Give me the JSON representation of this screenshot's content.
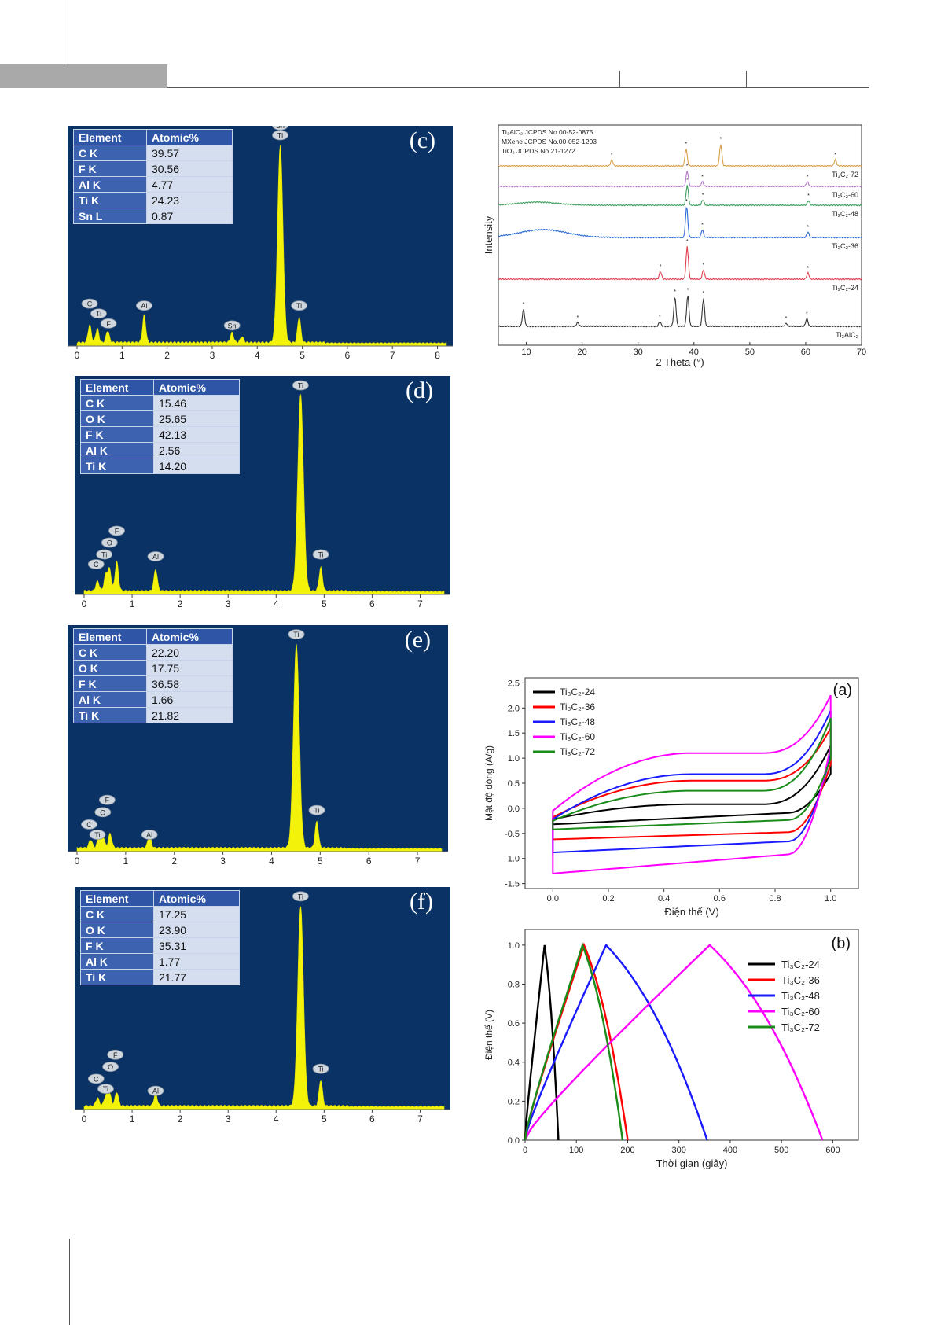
{
  "chart_data": [
    {
      "id": "eds-c",
      "type": "bar",
      "title": "(c)",
      "table_headers": [
        "Element",
        "Atomic%"
      ],
      "rows": [
        {
          "element": "C K",
          "value": "39.57"
        },
        {
          "element": "F K",
          "value": "30.56"
        },
        {
          "element": "Al K",
          "value": "4.77"
        },
        {
          "element": "Ti K",
          "value": "24.23"
        },
        {
          "element": "Sn L",
          "value": "0.87"
        }
      ],
      "xlim": [
        0,
        8.2
      ],
      "x_ticks": [
        "0",
        "1",
        "2",
        "3",
        "4",
        "5",
        "6",
        "7",
        "8"
      ],
      "peaks": [
        {
          "x": 0.28,
          "h": 0.09
        },
        {
          "x": 0.45,
          "h": 0.07
        },
        {
          "x": 0.68,
          "h": 0.06
        },
        {
          "x": 1.49,
          "h": 0.14
        },
        {
          "x": 3.44,
          "h": 0.05
        },
        {
          "x": 3.66,
          "h": 0.03
        },
        {
          "x": 4.51,
          "h": 1.0
        },
        {
          "x": 4.93,
          "h": 0.13
        }
      ],
      "peak_labels": [
        {
          "text": "C",
          "x": 0.28,
          "h": 0.19
        },
        {
          "text": "Ti",
          "x": 0.48,
          "h": 0.14
        },
        {
          "text": "F",
          "x": 0.7,
          "h": 0.09
        },
        {
          "text": "Al",
          "x": 1.49,
          "h": 0.18
        },
        {
          "text": "Sn",
          "x": 3.44,
          "h": 0.08
        },
        {
          "text": "Sn",
          "x": 4.51,
          "h": 1.09
        },
        {
          "text": "Ti",
          "x": 4.51,
          "h": 1.04
        },
        {
          "text": "Ti",
          "x": 4.93,
          "h": 0.18
        }
      ]
    },
    {
      "id": "eds-d",
      "type": "bar",
      "title": "(d)",
      "table_headers": [
        "Element",
        "Atomic%"
      ],
      "rows": [
        {
          "element": "C K",
          "value": "15.46"
        },
        {
          "element": "O K",
          "value": "25.65"
        },
        {
          "element": "F K",
          "value": "42.13"
        },
        {
          "element": "Al K",
          "value": "2.56"
        },
        {
          "element": "Ti K",
          "value": "14.20"
        }
      ],
      "xlim": [
        0,
        7.5
      ],
      "x_ticks": [
        "0",
        "1",
        "2",
        "3",
        "4",
        "5",
        "6",
        "7"
      ],
      "peaks": [
        {
          "x": 0.28,
          "h": 0.05
        },
        {
          "x": 0.45,
          "h": 0.08
        },
        {
          "x": 0.53,
          "h": 0.11
        },
        {
          "x": 0.68,
          "h": 0.15
        },
        {
          "x": 1.49,
          "h": 0.11
        },
        {
          "x": 4.51,
          "h": 1.0
        },
        {
          "x": 4.93,
          "h": 0.12
        }
      ],
      "peak_labels": [
        {
          "text": "C",
          "x": 0.25,
          "h": 0.13
        },
        {
          "text": "Ti",
          "x": 0.42,
          "h": 0.18
        },
        {
          "text": "O",
          "x": 0.53,
          "h": 0.24
        },
        {
          "text": "F",
          "x": 0.68,
          "h": 0.3
        },
        {
          "text": "Al",
          "x": 1.49,
          "h": 0.17
        },
        {
          "text": "Ti",
          "x": 4.51,
          "h": 1.04
        },
        {
          "text": "Ti",
          "x": 4.93,
          "h": 0.18
        }
      ]
    },
    {
      "id": "eds-e",
      "type": "bar",
      "title": "(e)",
      "table_headers": [
        "Element",
        "Atomic%"
      ],
      "rows": [
        {
          "element": "C K",
          "value": "22.20"
        },
        {
          "element": "O K",
          "value": "17.75"
        },
        {
          "element": "F K",
          "value": "36.58"
        },
        {
          "element": "Al K",
          "value": "1.66"
        },
        {
          "element": "Ti K",
          "value": "21.82"
        }
      ],
      "xlim": [
        0,
        7.5
      ],
      "x_ticks": [
        "0",
        "1",
        "2",
        "3",
        "4",
        "5",
        "6",
        "7"
      ],
      "peaks": [
        {
          "x": 0.28,
          "h": 0.04
        },
        {
          "x": 0.45,
          "h": 0.05
        },
        {
          "x": 0.53,
          "h": 0.06
        },
        {
          "x": 0.68,
          "h": 0.07
        },
        {
          "x": 1.49,
          "h": 0.06
        },
        {
          "x": 4.51,
          "h": 1.0
        },
        {
          "x": 4.93,
          "h": 0.13
        }
      ],
      "peak_labels": [
        {
          "text": "C",
          "x": 0.25,
          "h": 0.11
        },
        {
          "text": "Ti",
          "x": 0.42,
          "h": 0.06
        },
        {
          "text": "O",
          "x": 0.53,
          "h": 0.17
        },
        {
          "text": "F",
          "x": 0.62,
          "h": 0.23
        },
        {
          "text": "Al",
          "x": 1.49,
          "h": 0.06
        },
        {
          "text": "Ti",
          "x": 4.51,
          "h": 1.04
        },
        {
          "text": "Ti",
          "x": 4.93,
          "h": 0.18
        }
      ]
    },
    {
      "id": "eds-f",
      "type": "bar",
      "title": "(f)",
      "table_headers": [
        "Element",
        "Atomic%"
      ],
      "rows": [
        {
          "element": "C K",
          "value": "17.25"
        },
        {
          "element": "O K",
          "value": "23.90"
        },
        {
          "element": "F K",
          "value": "35.31"
        },
        {
          "element": "Al K",
          "value": "1.77"
        },
        {
          "element": "Ti K",
          "value": "21.77"
        }
      ],
      "xlim": [
        0,
        7.5
      ],
      "x_ticks": [
        "0",
        "1",
        "2",
        "3",
        "4",
        "5",
        "6",
        "7"
      ],
      "peaks": [
        {
          "x": 0.28,
          "h": 0.04
        },
        {
          "x": 0.45,
          "h": 0.05
        },
        {
          "x": 0.53,
          "h": 0.06
        },
        {
          "x": 0.68,
          "h": 0.07
        },
        {
          "x": 1.49,
          "h": 0.06
        },
        {
          "x": 4.51,
          "h": 1.0
        },
        {
          "x": 4.93,
          "h": 0.13
        }
      ],
      "peak_labels": [
        {
          "text": "C",
          "x": 0.25,
          "h": 0.13
        },
        {
          "text": "Ti",
          "x": 0.45,
          "h": 0.08
        },
        {
          "text": "O",
          "x": 0.55,
          "h": 0.19
        },
        {
          "text": "F",
          "x": 0.65,
          "h": 0.25
        },
        {
          "text": "Al",
          "x": 1.49,
          "h": 0.07
        },
        {
          "text": "Ti",
          "x": 4.51,
          "h": 1.04
        },
        {
          "text": "Ti",
          "x": 4.93,
          "h": 0.18
        }
      ]
    },
    {
      "id": "xrd",
      "type": "line",
      "xlabel": "2 Theta (°)",
      "ylabel": "Intensity",
      "xlim": [
        5,
        70
      ],
      "x_ticks": [
        10,
        20,
        30,
        40,
        50,
        60,
        70
      ],
      "legend_lines": [
        "Ti₃AlC₂ JCPDS No.00-52-0875",
        "MXene JCPDS No.00-052-1203",
        "TiO₂ JCPDS No.21-1272"
      ],
      "series": [
        {
          "name": "Ti₃C₂-72",
          "color": "#d9a14a",
          "peaks": [
            {
              "x": 25.3,
              "h": 8
            },
            {
              "x": 38.6,
              "h": 22
            },
            {
              "x": 44.8,
              "h": 28
            },
            {
              "x": 65.3,
              "h": 8
            }
          ]
        },
        {
          "name": "Ti₃C₂-60",
          "color": "#b57acb",
          "peaks": [
            {
              "x": 38.8,
              "h": 20
            },
            {
              "x": 41.5,
              "h": 6
            },
            {
              "x": 60.3,
              "h": 6
            }
          ]
        },
        {
          "name": "Ti₃C₂-48",
          "color": "#3f9e60",
          "peaks": [
            {
              "x": 38.8,
              "h": 26
            },
            {
              "x": 41.6,
              "h": 7
            },
            {
              "x": 60.5,
              "h": 6
            }
          ]
        },
        {
          "name": "Ti₃C₂-36",
          "color": "#2d6bd6",
          "peaks": [
            {
              "x": 38.7,
              "h": 40
            },
            {
              "x": 41.5,
              "h": 10
            },
            {
              "x": 60.4,
              "h": 7
            }
          ]
        },
        {
          "name": "Ti₃C₂-24",
          "color": "#e04050",
          "peaks": [
            {
              "x": 34.0,
              "h": 10
            },
            {
              "x": 38.8,
              "h": 42
            },
            {
              "x": 41.7,
              "h": 12
            },
            {
              "x": 60.4,
              "h": 8
            }
          ]
        },
        {
          "name": "Ti₃AlC₂",
          "color": "#333333",
          "peaks": [
            {
              "x": 9.5,
              "h": 22
            },
            {
              "x": 19.2,
              "h": 5
            },
            {
              "x": 33.9,
              "h": 6
            },
            {
              "x": 36.6,
              "h": 38
            },
            {
              "x": 38.9,
              "h": 40
            },
            {
              "x": 41.7,
              "h": 36
            },
            {
              "x": 56.5,
              "h": 4
            },
            {
              "x": 60.2,
              "h": 10
            }
          ]
        }
      ]
    },
    {
      "id": "cv",
      "type": "line",
      "panel_label": "(a)",
      "xlabel": "Điện thế (V)",
      "ylabel": "Mật độ dòng (A/g)",
      "xlim": [
        -0.1,
        1.1
      ],
      "ylim": [
        -1.6,
        2.6
      ],
      "x_ticks": [
        "0.0",
        "0.2",
        "0.4",
        "0.6",
        "0.8",
        "1.0"
      ],
      "y_ticks": [
        "2.5",
        "2.0",
        "1.5",
        "1.0",
        "0.5",
        "0.0",
        "-0.5",
        "-1.0",
        "-1.5"
      ],
      "series": [
        {
          "name": "Ti₃C₂-24",
          "color": "#000000",
          "upper_start": -0.22,
          "upper_mid": 0.08,
          "upper_end": 1.25,
          "lower_mid": -0.05,
          "lower_start": -0.32
        },
        {
          "name": "Ti₃C₂-36",
          "color": "#ff0000",
          "upper_start": -0.18,
          "upper_mid": 0.55,
          "upper_end": 1.6,
          "lower_mid": -0.45,
          "lower_start": -0.62
        },
        {
          "name": "Ti₃C₂-48",
          "color": "#1a1aff",
          "upper_start": -0.22,
          "upper_mid": 0.68,
          "upper_end": 1.95,
          "lower_mid": -0.62,
          "lower_start": -0.88
        },
        {
          "name": "Ti₃C₂-60",
          "color": "#ff00ff",
          "upper_start": -0.05,
          "upper_mid": 1.1,
          "upper_end": 2.25,
          "lower_mid": -0.85,
          "lower_start": -1.3
        },
        {
          "name": "Ti₃C₂-72",
          "color": "#1a8c1a",
          "upper_start": -0.25,
          "upper_mid": 0.35,
          "upper_end": 1.8,
          "lower_mid": -0.2,
          "lower_start": -0.42
        }
      ]
    },
    {
      "id": "gcd",
      "type": "line",
      "panel_label": "(b)",
      "xlabel": "Thời gian (giây)",
      "ylabel": "Điện thế (V)",
      "xlim": [
        0,
        650
      ],
      "ylim": [
        0,
        1.08
      ],
      "x_ticks": [
        "0",
        "100",
        "200",
        "300",
        "400",
        "500",
        "600"
      ],
      "y_ticks": [
        "0.0",
        "0.2",
        "0.4",
        "0.6",
        "0.8",
        "1.0"
      ],
      "series": [
        {
          "name": "Ti₃C₂-24",
          "color": "#000000",
          "t_charge": 38,
          "t_end": 65
        },
        {
          "name": "Ti₃C₂-36",
          "color": "#ff0000",
          "t_charge": 115,
          "t_end": 200
        },
        {
          "name": "Ti₃C₂-48",
          "color": "#1a1aff",
          "t_charge": 158,
          "t_end": 355
        },
        {
          "name": "Ti₃C₂-60",
          "color": "#ff00ff",
          "t_charge": 360,
          "t_end": 580
        },
        {
          "name": "Ti₃C₂-72",
          "color": "#1a8c1a",
          "t_charge": 112,
          "t_end": 190
        }
      ]
    }
  ]
}
